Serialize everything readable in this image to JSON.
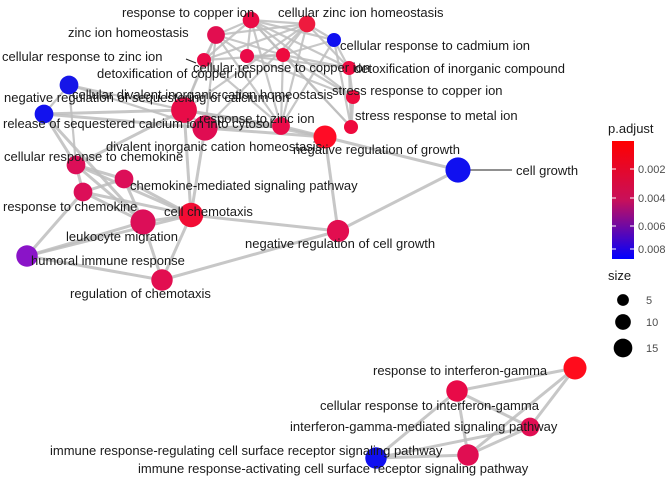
{
  "chart_data": {
    "type": "network",
    "nodes": [
      {
        "id": "n1",
        "label": "response to copper ion",
        "size": 5,
        "p_adjust": 0.0025,
        "color": "#ea0a45"
      },
      {
        "id": "n2",
        "label": "cellular zinc ion homeostasis",
        "size": 5,
        "p_adjust": 0.0022,
        "color": "#ee1a3e"
      },
      {
        "id": "n3",
        "label": "zinc ion homeostasis",
        "size": 6,
        "p_adjust": 0.0028,
        "color": "#e20e50"
      },
      {
        "id": "n4",
        "label": "cellular response to cadmium ion",
        "size": 3,
        "p_adjust": 0.0085,
        "color": "#1010f0"
      },
      {
        "id": "n5",
        "label": "cellular response to zinc ion",
        "size": 3,
        "p_adjust": 0.0024,
        "color": "#ea0a48"
      },
      {
        "id": "n6",
        "label": "detoxification of copper ion",
        "size": 3,
        "p_adjust": 0.0024,
        "color": "#ea0a48"
      },
      {
        "id": "n7",
        "label": "cellular response to copper ion",
        "size": 3,
        "p_adjust": 0.0022,
        "color": "#ee0a3e"
      },
      {
        "id": "n8",
        "label": "detoxification of inorganic compound",
        "size": 3,
        "p_adjust": 0.0022,
        "color": "#ee0a40"
      },
      {
        "id": "n9",
        "label": "negative regulation of sequestering of calcium ion",
        "size": 7,
        "p_adjust": 0.008,
        "color": "#1616e8"
      },
      {
        "id": "n10",
        "label": "cellular divalent inorganic cation homeostasis",
        "size": 16,
        "p_adjust": 0.0025,
        "color": "#e80c48"
      },
      {
        "id": "n11",
        "label": "stress response to copper ion",
        "size": 3,
        "p_adjust": 0.0022,
        "color": "#ee0a3e"
      },
      {
        "id": "n12",
        "label": "release of sequestered calcium ion into cytosol",
        "size": 7,
        "p_adjust": 0.0082,
        "color": "#1212ee"
      },
      {
        "id": "n13",
        "label": "response to zinc ion",
        "size": 6,
        "p_adjust": 0.0024,
        "color": "#ea0a48"
      },
      {
        "id": "n14",
        "label": "divalent inorganic cation homeostasis",
        "size": 15,
        "p_adjust": 0.0028,
        "color": "#e00c52"
      },
      {
        "id": "n15",
        "label": "stress response to metal ion",
        "size": 3,
        "p_adjust": 0.0022,
        "color": "#ee0a3e"
      },
      {
        "id": "n16",
        "label": "negative regulation of growth",
        "size": 12,
        "p_adjust": 0.0021,
        "color": "#ff0c26"
      },
      {
        "id": "n17",
        "label": "cell growth",
        "size": 15,
        "p_adjust": 0.0085,
        "color": "#1010f0"
      },
      {
        "id": "n18",
        "label": "cellular response to chemokine",
        "size": 7,
        "p_adjust": 0.003,
        "color": "#dc0e58"
      },
      {
        "id": "n19",
        "label": "chemokine-mediated signaling pathway",
        "size": 7,
        "p_adjust": 0.003,
        "color": "#dc0e58"
      },
      {
        "id": "n20",
        "label": "response to chemokine",
        "size": 7,
        "p_adjust": 0.003,
        "color": "#dc0e58"
      },
      {
        "id": "n21",
        "label": "cell chemotaxis",
        "size": 14,
        "p_adjust": 0.0022,
        "color": "#f20c34"
      },
      {
        "id": "n22",
        "label": "leukocyte migration",
        "size": 15,
        "p_adjust": 0.003,
        "color": "#dc0e58"
      },
      {
        "id": "n23",
        "label": "negative regulation of cell growth",
        "size": 11,
        "p_adjust": 0.0028,
        "color": "#e20e50"
      },
      {
        "id": "n24",
        "label": "humoral immune response",
        "size": 10,
        "p_adjust": 0.0055,
        "color": "#8a14c8"
      },
      {
        "id": "n25",
        "label": "regulation of chemotaxis",
        "size": 10,
        "p_adjust": 0.0028,
        "color": "#e20e50"
      },
      {
        "id": "n26",
        "label": "response to interferon-gamma",
        "size": 12,
        "p_adjust": 0.002,
        "color": "#ff0c1c"
      },
      {
        "id": "n27",
        "label": "cellular response to interferon-gamma",
        "size": 10,
        "p_adjust": 0.0025,
        "color": "#e80a48"
      },
      {
        "id": "n28",
        "label": "interferon-gamma-mediated signaling pathway",
        "size": 7,
        "p_adjust": 0.0028,
        "color": "#e00e52"
      },
      {
        "id": "n29",
        "label": "immune response-regulating cell surface receptor signaling pathway",
        "size": 10,
        "p_adjust": 0.0028,
        "color": "#e00e52"
      },
      {
        "id": "n30",
        "label": "immune response-activating cell surface receptor signaling pathway",
        "size": 10,
        "p_adjust": 0.0085,
        "color": "#1010f0"
      }
    ],
    "edges": [
      [
        "n1",
        "n2"
      ],
      [
        "n1",
        "n3"
      ],
      [
        "n1",
        "n5"
      ],
      [
        "n1",
        "n6"
      ],
      [
        "n1",
        "n7"
      ],
      [
        "n1",
        "n8"
      ],
      [
        "n1",
        "n11"
      ],
      [
        "n1",
        "n13"
      ],
      [
        "n1",
        "n15"
      ],
      [
        "n1",
        "n4"
      ],
      [
        "n2",
        "n3"
      ],
      [
        "n2",
        "n5"
      ],
      [
        "n2",
        "n7"
      ],
      [
        "n2",
        "n13"
      ],
      [
        "n2",
        "n10"
      ],
      [
        "n2",
        "n14"
      ],
      [
        "n2",
        "n4"
      ],
      [
        "n2",
        "n8"
      ],
      [
        "n3",
        "n5"
      ],
      [
        "n3",
        "n10"
      ],
      [
        "n3",
        "n14"
      ],
      [
        "n3",
        "n13"
      ],
      [
        "n3",
        "n7"
      ],
      [
        "n3",
        "n6"
      ],
      [
        "n4",
        "n7"
      ],
      [
        "n4",
        "n8"
      ],
      [
        "n4",
        "n15"
      ],
      [
        "n4",
        "n13"
      ],
      [
        "n5",
        "n13"
      ],
      [
        "n5",
        "n10"
      ],
      [
        "n5",
        "n7"
      ],
      [
        "n6",
        "n7"
      ],
      [
        "n6",
        "n8"
      ],
      [
        "n6",
        "n11"
      ],
      [
        "n7",
        "n8"
      ],
      [
        "n7",
        "n11"
      ],
      [
        "n7",
        "n13"
      ],
      [
        "n7",
        "n15"
      ],
      [
        "n8",
        "n11"
      ],
      [
        "n8",
        "n15"
      ],
      [
        "n9",
        "n10"
      ],
      [
        "n9",
        "n12"
      ],
      [
        "n9",
        "n14"
      ],
      [
        "n9",
        "n18"
      ],
      [
        "n10",
        "n14"
      ],
      [
        "n10",
        "n12"
      ],
      [
        "n10",
        "n13"
      ],
      [
        "n10",
        "n16"
      ],
      [
        "n10",
        "n18"
      ],
      [
        "n10",
        "n21"
      ],
      [
        "n11",
        "n15"
      ],
      [
        "n13",
        "n14"
      ],
      [
        "n13",
        "n16"
      ],
      [
        "n14",
        "n12"
      ],
      [
        "n14",
        "n16"
      ],
      [
        "n14",
        "n21"
      ],
      [
        "n12",
        "n18"
      ],
      [
        "n12",
        "n22"
      ],
      [
        "n16",
        "n17"
      ],
      [
        "n16",
        "n23"
      ],
      [
        "n17",
        "n23"
      ],
      [
        "n18",
        "n19"
      ],
      [
        "n18",
        "n20"
      ],
      [
        "n18",
        "n21"
      ],
      [
        "n18",
        "n22"
      ],
      [
        "n19",
        "n20"
      ],
      [
        "n19",
        "n21"
      ],
      [
        "n19",
        "n22"
      ],
      [
        "n20",
        "n21"
      ],
      [
        "n20",
        "n22"
      ],
      [
        "n21",
        "n22"
      ],
      [
        "n21",
        "n25"
      ],
      [
        "n21",
        "n24"
      ],
      [
        "n22",
        "n24"
      ],
      [
        "n22",
        "n25"
      ],
      [
        "n20",
        "n24"
      ],
      [
        "n24",
        "n25"
      ],
      [
        "n23",
        "n25"
      ],
      [
        "n23",
        "n21"
      ],
      [
        "n26",
        "n27"
      ],
      [
        "n26",
        "n28"
      ],
      [
        "n26",
        "n29"
      ],
      [
        "n27",
        "n28"
      ],
      [
        "n27",
        "n29"
      ],
      [
        "n27",
        "n30"
      ],
      [
        "n28",
        "n29"
      ],
      [
        "n28",
        "n30"
      ],
      [
        "n29",
        "n30"
      ]
    ],
    "legend": {
      "color_title": "p.adjust",
      "color_ticks": [
        "0.002",
        "0.004",
        "0.006",
        "0.008"
      ],
      "color_range": [
        "#ff0000",
        "#0000ff"
      ],
      "size_title": "size",
      "size_ticks": [
        "5",
        "10",
        "15"
      ]
    }
  }
}
